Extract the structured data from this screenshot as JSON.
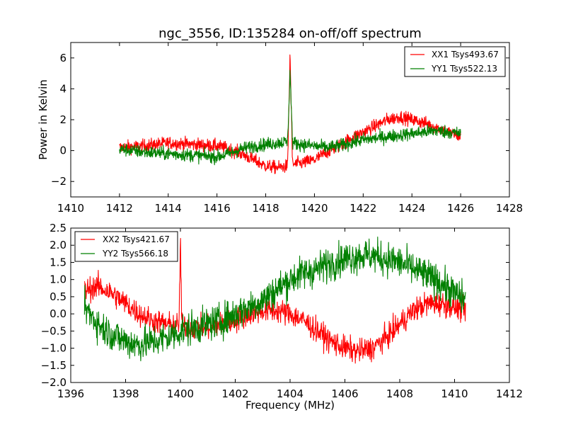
{
  "figure": {
    "title": "ngc_3556, ID:135284 on-off/off spectrum"
  },
  "chart_data": [
    {
      "type": "line",
      "title": "ngc_3556, ID:135284 on-off/off spectrum",
      "xlabel": "",
      "ylabel": "Power in Kelvin",
      "xlim": [
        1410,
        1428
      ],
      "ylim": [
        -3,
        7
      ],
      "xticks": [
        1410,
        1412,
        1414,
        1416,
        1418,
        1420,
        1422,
        1424,
        1426,
        1428
      ],
      "yticks": [
        -2,
        0,
        2,
        4,
        6
      ],
      "xtick_labels": [
        "1410",
        "1412",
        "1414",
        "1416",
        "1418",
        "1420",
        "1422",
        "1424",
        "1426",
        "1428"
      ],
      "ytick_labels": [
        "−2",
        "0",
        "2",
        "4",
        "6"
      ],
      "legend_position": "top-right",
      "series": [
        {
          "name": "XX1 Tsys493.67",
          "color": "#ff0000",
          "x": [
            1412.0,
            1413.0,
            1414.0,
            1415.0,
            1416.0,
            1416.5,
            1417.0,
            1417.5,
            1418.0,
            1418.5,
            1418.9,
            1419.0,
            1419.1,
            1419.5,
            1420.0,
            1420.5,
            1421.0,
            1421.5,
            1422.0,
            1422.5,
            1423.0,
            1423.5,
            1424.0,
            1424.5,
            1425.0,
            1425.5,
            1426.0
          ],
          "y": [
            0.2,
            0.3,
            0.5,
            0.4,
            0.3,
            0.1,
            -0.2,
            -0.6,
            -1.0,
            -1.1,
            -1.0,
            6.2,
            -0.9,
            -0.8,
            -0.6,
            -0.1,
            0.3,
            0.8,
            1.2,
            1.6,
            2.0,
            2.2,
            2.0,
            1.8,
            1.5,
            1.2,
            0.9
          ],
          "noise": 0.3
        },
        {
          "name": "YY1 Tsys522.13",
          "color": "#008000",
          "x": [
            1412.0,
            1413.0,
            1414.0,
            1415.0,
            1416.0,
            1416.5,
            1417.0,
            1417.5,
            1418.0,
            1418.5,
            1418.9,
            1419.0,
            1419.1,
            1419.5,
            1420.0,
            1420.5,
            1421.0,
            1421.5,
            1422.0,
            1422.5,
            1423.0,
            1423.5,
            1424.0,
            1424.5,
            1425.0,
            1425.5,
            1426.0
          ],
          "y": [
            0.1,
            -0.1,
            -0.2,
            -0.3,
            -0.4,
            -0.2,
            0.1,
            0.3,
            0.4,
            0.5,
            0.6,
            5.2,
            0.5,
            0.4,
            0.3,
            0.2,
            0.3,
            0.5,
            0.7,
            0.8,
            0.9,
            1.0,
            1.1,
            1.2,
            1.3,
            1.2,
            1.1
          ],
          "noise": 0.3
        }
      ]
    },
    {
      "type": "line",
      "title": "",
      "xlabel": "Frequency (MHz)",
      "ylabel": "",
      "xlim": [
        1396,
        1412
      ],
      "ylim": [
        -2.0,
        2.5
      ],
      "xticks": [
        1396,
        1398,
        1400,
        1402,
        1404,
        1406,
        1408,
        1410,
        1412
      ],
      "yticks": [
        -2.0,
        -1.5,
        -1.0,
        -0.5,
        0.0,
        0.5,
        1.0,
        1.5,
        2.0,
        2.5
      ],
      "xtick_labels": [
        "1396",
        "1398",
        "1400",
        "1402",
        "1404",
        "1406",
        "1408",
        "1410",
        "1412"
      ],
      "ytick_labels": [
        "−2.0",
        "−1.5",
        "−1.0",
        "−0.5",
        "0.0",
        "0.5",
        "1.0",
        "1.5",
        "2.0",
        "2.5"
      ],
      "legend_position": "top-left",
      "series": [
        {
          "name": "XX2 Tsys421.67",
          "color": "#ff0000",
          "x": [
            1396.5,
            1397.0,
            1397.5,
            1398.0,
            1398.5,
            1399.0,
            1399.5,
            1399.95,
            1400.0,
            1400.05,
            1400.5,
            1401.0,
            1401.5,
            1402.0,
            1402.5,
            1403.0,
            1403.5,
            1404.0,
            1404.5,
            1405.0,
            1405.5,
            1406.0,
            1406.5,
            1407.0,
            1407.5,
            1408.0,
            1408.5,
            1409.0,
            1409.5,
            1410.0,
            1410.4
          ],
          "y": [
            0.7,
            0.8,
            0.6,
            0.3,
            0.0,
            -0.2,
            -0.3,
            -0.35,
            2.2,
            -0.35,
            -0.4,
            -0.4,
            -0.3,
            -0.2,
            0.0,
            0.1,
            0.1,
            0.0,
            -0.2,
            -0.5,
            -0.8,
            -1.0,
            -1.1,
            -1.0,
            -0.7,
            -0.3,
            0.1,
            0.3,
            0.3,
            0.2,
            0.1
          ],
          "noise": 0.25
        },
        {
          "name": "YY2 Tsys566.18",
          "color": "#008000",
          "x": [
            1396.5,
            1397.0,
            1397.5,
            1398.0,
            1398.5,
            1399.0,
            1399.5,
            1400.0,
            1400.5,
            1401.0,
            1401.5,
            1402.0,
            1402.5,
            1403.0,
            1403.5,
            1404.0,
            1404.5,
            1405.0,
            1405.5,
            1406.0,
            1406.5,
            1407.0,
            1407.5,
            1408.0,
            1408.5,
            1409.0,
            1409.5,
            1410.0,
            1410.4
          ],
          "y": [
            0.2,
            -0.3,
            -0.6,
            -0.8,
            -0.9,
            -0.8,
            -0.7,
            -0.5,
            -0.4,
            -0.3,
            -0.2,
            0.0,
            0.2,
            0.4,
            0.7,
            1.0,
            1.2,
            1.3,
            1.5,
            1.6,
            1.7,
            1.7,
            1.6,
            1.5,
            1.3,
            1.1,
            0.9,
            0.6,
            0.4
          ],
          "noise": 0.35
        }
      ]
    }
  ]
}
